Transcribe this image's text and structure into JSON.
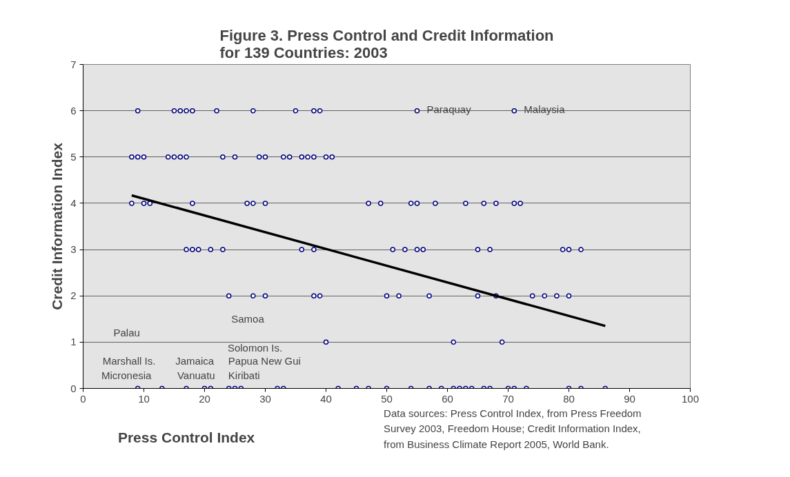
{
  "chart_data": {
    "type": "scatter",
    "title": "Figure 3. Press Control and Credit Information\nfor 139 Countries: 2003",
    "xlabel": "Press Control Index",
    "ylabel": "Credit Information Index",
    "xlim": [
      0,
      100
    ],
    "ylim": [
      0,
      7
    ],
    "xticks": [
      0,
      10,
      20,
      30,
      40,
      50,
      60,
      70,
      80,
      90,
      100
    ],
    "yticks": [
      0,
      1,
      2,
      3,
      4,
      5,
      6,
      7
    ],
    "grid": "y",
    "marker": "circle",
    "series": [
      {
        "color": "#000080",
        "x": [
          9,
          15,
          16,
          17,
          18,
          22,
          28,
          35,
          38,
          39,
          55,
          71,
          8,
          9,
          10,
          14,
          15,
          16,
          17,
          23,
          25,
          29,
          30,
          33,
          34,
          36,
          37,
          38,
          40,
          41,
          8,
          10,
          11,
          18,
          27,
          28,
          30,
          47,
          49,
          54,
          55,
          58,
          63,
          66,
          68,
          71,
          72,
          17,
          18,
          19,
          21,
          23,
          36,
          38,
          51,
          53,
          55,
          56,
          65,
          67,
          79,
          80,
          82,
          24,
          28,
          30,
          38,
          39,
          50,
          52,
          57,
          65,
          68,
          74,
          76,
          78,
          80,
          40,
          61,
          69,
          9,
          13,
          17,
          20,
          21,
          24,
          25,
          26,
          32,
          33,
          42,
          45,
          47,
          50,
          54,
          57,
          59,
          61,
          62,
          63,
          64,
          66,
          67,
          70,
          71,
          73,
          80,
          82,
          86
        ],
        "values": [
          6,
          6,
          6,
          6,
          6,
          6,
          6,
          6,
          6,
          6,
          6,
          6,
          5,
          5,
          5,
          5,
          5,
          5,
          5,
          5,
          5,
          5,
          5,
          5,
          5,
          5,
          5,
          5,
          5,
          5,
          4,
          4,
          4,
          4,
          4,
          4,
          4,
          4,
          4,
          4,
          4,
          4,
          4,
          4,
          4,
          4,
          4,
          3,
          3,
          3,
          3,
          3,
          3,
          3,
          3,
          3,
          3,
          3,
          3,
          3,
          3,
          3,
          3,
          2,
          2,
          2,
          2,
          2,
          2,
          2,
          2,
          2,
          2,
          2,
          2,
          2,
          2,
          1,
          1,
          1,
          0,
          0,
          0,
          0,
          0,
          0,
          0,
          0,
          0,
          0,
          0,
          0,
          0,
          0,
          0,
          0,
          0,
          0,
          0,
          0,
          0,
          0,
          0,
          0,
          0,
          0,
          0,
          0,
          0
        ]
      },
      {
        "type": "line",
        "marker": "none",
        "color": "#000000",
        "x": [
          8,
          86
        ],
        "values": [
          4.17,
          1.35
        ]
      }
    ],
    "annotations": [
      {
        "text": "Paraquay",
        "x": 55,
        "y": 6
      },
      {
        "text": "Malaysia",
        "x": 71,
        "y": 6
      },
      "Samoa",
      "Palau",
      "Solomon Is.",
      "Marshall Is.",
      "Jamaica",
      "Papua New Gui",
      "Micronesia",
      "Vanuatu",
      "Kiribati",
      "Data sources: Press Control Index, from Press Freedom\nSurvey 2003, Freedom House; Credit Information Index,\nfrom Business Climate Report 2005, World Bank."
    ]
  }
}
